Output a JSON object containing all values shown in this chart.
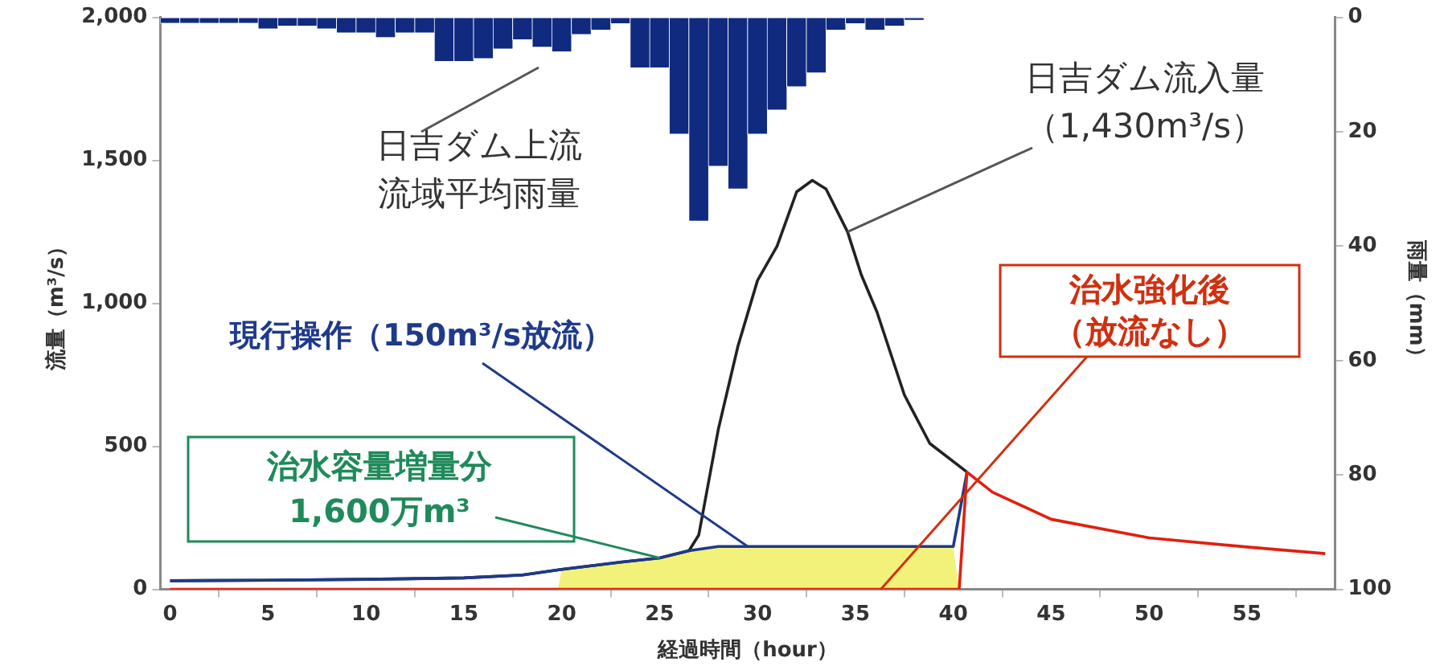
{
  "chart_data": {
    "type": "line",
    "xlabel": "経過時間（hour）",
    "ylabel": "流量（m³/s）",
    "y2label": "雨量（mm）",
    "xlim": [
      -0.5,
      59.5
    ],
    "xticks": [
      0,
      5,
      10,
      15,
      20,
      25,
      30,
      35,
      40,
      45,
      50,
      55
    ],
    "ylim": [
      0,
      2000
    ],
    "yticks": [
      0,
      500,
      {
        "value": 1000,
        "label": "1,000"
      },
      {
        "value": 1500,
        "label": "1,500"
      },
      {
        "value": 2000,
        "label": "2,000"
      }
    ],
    "y2lim": [
      100,
      0
    ],
    "y2ticks": [
      0,
      20,
      40,
      60,
      80,
      100
    ],
    "grid": false,
    "legend": false,
    "marker": "none",
    "line_style": "solid",
    "series": [
      {
        "type": "area",
        "color": "#f2f27a",
        "x": [
          19.8,
          20,
          23,
          25,
          26.5,
          28,
          40,
          40.3
        ],
        "values": [
          0,
          70,
          95,
          110,
          135,
          150,
          150,
          0
        ]
      },
      {
        "color": "#222222",
        "x": [
          0,
          5,
          10,
          15,
          18,
          20,
          23,
          25,
          26.5,
          27,
          28,
          29,
          30,
          31,
          32,
          32.8,
          33.5,
          34.6,
          35.3,
          36.1,
          37.5,
          38.8,
          40.7
        ],
        "values": [
          30,
          32,
          35,
          40,
          50,
          70,
          95,
          110,
          135,
          190,
          560,
          850,
          1080,
          1200,
          1390,
          1430,
          1400,
          1250,
          1100,
          970,
          680,
          510,
          410
        ]
      },
      {
        "color": "#1f3a8a",
        "x": [
          0,
          5,
          10,
          15,
          18,
          20,
          23,
          25,
          26.5,
          28,
          40,
          40.7
        ],
        "values": [
          30,
          32,
          35,
          40,
          50,
          70,
          95,
          110,
          135,
          150,
          150,
          410
        ]
      },
      {
        "color": "#e02010",
        "x": [
          0,
          40.3,
          40.7,
          42,
          45,
          50,
          55,
          59
        ],
        "values": [
          0,
          0,
          410,
          340,
          245,
          180,
          148,
          125
        ]
      },
      {
        "type": "bar",
        "axis": "y2",
        "color": "#102a80",
        "x": [
          0,
          1,
          2,
          3,
          4,
          5,
          6,
          7,
          8,
          9,
          10,
          11,
          12,
          13,
          14,
          15,
          16,
          17,
          18,
          19,
          20,
          21,
          22,
          23,
          24,
          25,
          26,
          27,
          28,
          29,
          30,
          31,
          32,
          33,
          34,
          35,
          36,
          37,
          38
        ],
        "values": [
          1,
          1,
          1,
          1,
          1,
          2,
          1.5,
          1.5,
          2,
          2.7,
          2.7,
          3.5,
          2.7,
          2.7,
          7.7,
          7.7,
          7.2,
          5.5,
          3.9,
          5.2,
          6,
          3,
          2.2,
          1.1,
          8.8,
          8.8,
          20.4,
          35.6,
          26,
          30,
          20.4,
          16.2,
          12.1,
          9.7,
          2.2,
          1.1,
          2.2,
          1.5,
          0.5
        ]
      }
    ],
    "annotations": [
      "日吉ダム上流流域平均雨量",
      {
        "text": "日吉ダム流入量（1,430m³/s）",
        "x": 34.6,
        "y": 1250
      },
      {
        "text": "現行操作（150m³/s放流）",
        "x": 29.5,
        "y": 150
      },
      {
        "text": "治水強化後（放流なし）",
        "x": 36.3,
        "y": 0
      },
      {
        "text": "治水容量増量分1,600万m³",
        "x": 25,
        "y": 110
      }
    ]
  }
}
